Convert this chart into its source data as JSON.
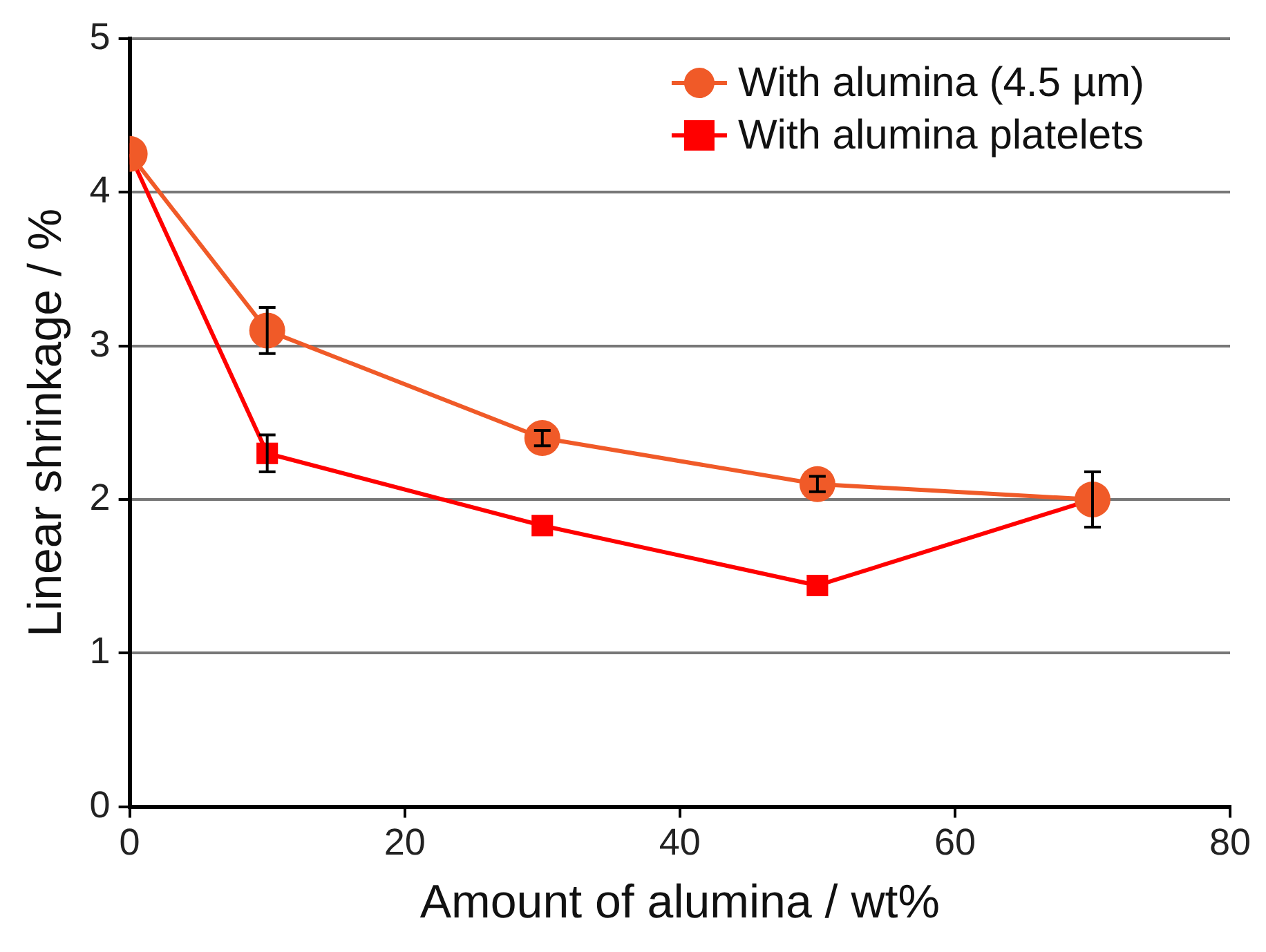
{
  "chart_data": {
    "type": "line",
    "xlabel": "Amount of alumina / wt%",
    "ylabel": "Linear shrinkage / %",
    "x": [
      0,
      10,
      30,
      50,
      70
    ],
    "series": [
      {
        "name": "With alumina (4.5 µm)",
        "color": "#f05a28",
        "marker": "circle",
        "values": [
          4.25,
          3.1,
          2.4,
          2.1,
          2.0
        ],
        "errors": [
          null,
          0.15,
          0.05,
          0.05,
          null
        ]
      },
      {
        "name": "With alumina platelets",
        "color": "#ff0000",
        "marker": "square",
        "values": [
          4.25,
          2.3,
          1.83,
          1.44,
          2.0
        ],
        "errors": [
          null,
          0.12,
          null,
          null,
          0.18
        ]
      }
    ],
    "xlim": [
      0,
      80
    ],
    "xticks": [
      0,
      20,
      40,
      60,
      80
    ],
    "ylim": [
      0,
      5
    ],
    "yticks": [
      0,
      1,
      2,
      3,
      4,
      5
    ],
    "grid": "y",
    "legend": "top right",
    "line_style": "solid"
  }
}
